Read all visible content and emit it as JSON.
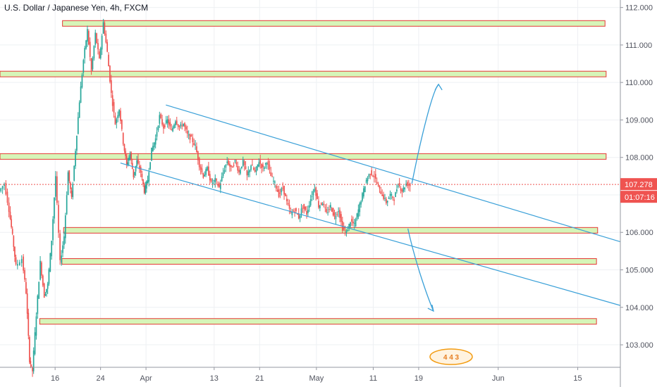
{
  "header": {
    "title": "U.S. Dollar / Japanese Yen, 4h, FXCM"
  },
  "price_tag": {
    "price": "107.278",
    "countdown": "01:07:16",
    "color": "#ef5350"
  },
  "watermark": {
    "text": "4 4 3"
  },
  "colors": {
    "up": "#26a69a",
    "down": "#ef5350",
    "zone_fill": "#d6f5b8",
    "zone_stroke": "#e53935",
    "trend": "#3aa0d8"
  },
  "chart_data": {
    "type": "candlestick",
    "symbol": "U.S. Dollar / Japanese Yen",
    "interval": "4h",
    "source": "FXCM",
    "ylim": [
      102.4,
      112.2
    ],
    "y_ticks": [
      "103.000",
      "104.000",
      "105.000",
      "106.000",
      "107.000",
      "108.000",
      "109.000",
      "110.000",
      "111.000",
      "112.000"
    ],
    "x_ticks": [
      {
        "label": "16",
        "day": 16
      },
      {
        "label": "24",
        "day": 24
      },
      {
        "label": "Apr",
        "day": 32
      },
      {
        "label": "13",
        "day": 44
      },
      {
        "label": "21",
        "day": 52
      },
      {
        "label": "May",
        "day": 62
      },
      {
        "label": "11",
        "day": 72
      },
      {
        "label": "19",
        "day": 80
      },
      {
        "label": "Jun",
        "day": 94
      },
      {
        "label": "15",
        "day": 108
      }
    ],
    "x_range": [
      6.3,
      115.5
    ],
    "current_price": 107.278,
    "price_path": [
      [
        6.3,
        107.1
      ],
      [
        7.2,
        107.3
      ],
      [
        8.0,
        106.6
      ],
      [
        8.6,
        105.9
      ],
      [
        9.2,
        105.1
      ],
      [
        10.3,
        105.3
      ],
      [
        11.0,
        104.4
      ],
      [
        11.6,
        102.6
      ],
      [
        12.1,
        102.3
      ],
      [
        12.8,
        103.8
      ],
      [
        13.5,
        105.2
      ],
      [
        14.2,
        104.3
      ],
      [
        14.8,
        104.6
      ],
      [
        15.5,
        105.8
      ],
      [
        16.2,
        107.5
      ],
      [
        17.0,
        105.2
      ],
      [
        17.7,
        105.9
      ],
      [
        18.4,
        107.6
      ],
      [
        19.0,
        106.9
      ],
      [
        19.7,
        108.2
      ],
      [
        20.4,
        109.5
      ],
      [
        21.1,
        110.6
      ],
      [
        21.8,
        111.4
      ],
      [
        22.5,
        110.3
      ],
      [
        23.2,
        111.3
      ],
      [
        23.9,
        110.6
      ],
      [
        24.6,
        111.6
      ],
      [
        25.3,
        110.8
      ],
      [
        26.0,
        109.7
      ],
      [
        26.7,
        108.9
      ],
      [
        27.4,
        109.3
      ],
      [
        28.1,
        108.4
      ],
      [
        28.7,
        107.8
      ],
      [
        29.3,
        108.1
      ],
      [
        29.9,
        107.5
      ],
      [
        30.5,
        107.9
      ],
      [
        31.2,
        107.6
      ],
      [
        31.8,
        107.1
      ],
      [
        32.4,
        107.4
      ],
      [
        33.1,
        108.2
      ],
      [
        33.8,
        108.5
      ],
      [
        34.5,
        109.1
      ],
      [
        35.2,
        108.8
      ],
      [
        35.9,
        109.0
      ],
      [
        36.6,
        108.7
      ],
      [
        37.3,
        109.0
      ],
      [
        38.0,
        108.8
      ],
      [
        38.7,
        108.9
      ],
      [
        39.4,
        108.6
      ],
      [
        40.1,
        108.5
      ],
      [
        40.8,
        108.3
      ],
      [
        41.5,
        107.8
      ],
      [
        42.2,
        107.5
      ],
      [
        42.9,
        107.7
      ],
      [
        43.6,
        107.3
      ],
      [
        44.3,
        107.4
      ],
      [
        45.0,
        107.2
      ],
      [
        45.7,
        107.6
      ],
      [
        46.4,
        107.9
      ],
      [
        47.1,
        107.7
      ],
      [
        47.8,
        107.9
      ],
      [
        48.5,
        107.6
      ],
      [
        49.2,
        107.9
      ],
      [
        49.9,
        107.5
      ],
      [
        50.6,
        107.8
      ],
      [
        51.3,
        107.6
      ],
      [
        52.0,
        107.9
      ],
      [
        52.7,
        107.7
      ],
      [
        53.4,
        107.9
      ],
      [
        54.1,
        107.5
      ],
      [
        54.8,
        107.3
      ],
      [
        55.5,
        107.0
      ],
      [
        56.2,
        107.2
      ],
      [
        56.9,
        106.8
      ],
      [
        57.6,
        106.5
      ],
      [
        58.3,
        106.6
      ],
      [
        59.0,
        106.4
      ],
      [
        59.7,
        106.7
      ],
      [
        60.4,
        106.5
      ],
      [
        61.1,
        106.9
      ],
      [
        61.8,
        107.2
      ],
      [
        62.5,
        106.7
      ],
      [
        63.2,
        106.8
      ],
      [
        63.9,
        106.5
      ],
      [
        64.6,
        106.7
      ],
      [
        65.3,
        106.4
      ],
      [
        66.0,
        106.6
      ],
      [
        66.7,
        106.1
      ],
      [
        67.4,
        106.0
      ],
      [
        68.1,
        106.3
      ],
      [
        68.8,
        106.2
      ],
      [
        69.5,
        106.6
      ],
      [
        70.2,
        107.0
      ],
      [
        70.9,
        107.4
      ],
      [
        71.6,
        107.6
      ],
      [
        72.3,
        107.5
      ],
      [
        73.0,
        107.2
      ],
      [
        73.7,
        107.0
      ],
      [
        74.4,
        106.8
      ],
      [
        75.1,
        107.0
      ],
      [
        75.8,
        106.9
      ],
      [
        76.5,
        107.3
      ],
      [
        77.2,
        107.1
      ],
      [
        77.9,
        107.3
      ],
      [
        78.6,
        107.25
      ]
    ],
    "zones": [
      {
        "low": 111.5,
        "high": 111.65,
        "x_start": 17.3,
        "x_end": 112.8
      },
      {
        "low": 110.15,
        "high": 110.3,
        "x_start": 6.3,
        "x_end": 113.0
      },
      {
        "low": 107.95,
        "high": 108.1,
        "x_start": 6.3,
        "x_end": 113.0
      },
      {
        "low": 105.98,
        "high": 106.13,
        "x_start": 17.5,
        "x_end": 111.5
      },
      {
        "low": 105.15,
        "high": 105.3,
        "x_start": 17.2,
        "x_end": 111.3
      },
      {
        "low": 103.55,
        "high": 103.7,
        "x_start": 13.3,
        "x_end": 111.3
      }
    ],
    "trendlines": [
      {
        "from": [
          35.5,
          109.4
        ],
        "to": [
          115.5,
          105.75
        ]
      },
      {
        "from": [
          27.5,
          107.85
        ],
        "to": [
          115.5,
          104.05
        ]
      }
    ],
    "arrows": [
      {
        "path": [
          [
            78.8,
            107.3
          ],
          [
            80.5,
            108.6
          ],
          [
            82.5,
            109.8
          ],
          [
            83.5,
            109.95
          ]
        ],
        "direction": "up"
      },
      {
        "path": [
          [
            78.1,
            106.1
          ],
          [
            79.4,
            105.2
          ],
          [
            81.5,
            104.3
          ],
          [
            82.6,
            103.9
          ]
        ],
        "direction": "down"
      }
    ]
  }
}
